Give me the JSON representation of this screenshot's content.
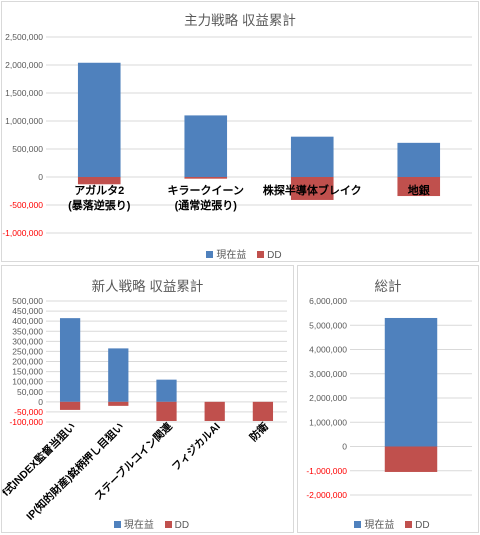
{
  "colors": {
    "profit": "#4f81bd",
    "dd": "#c0504d",
    "grid": "#d9d9d9",
    "axis_text": "#595959",
    "negative_tick": "#ff0000"
  },
  "legend": {
    "profit": "現在益",
    "dd": "DD"
  },
  "chart_data": [
    {
      "type": "bar",
      "stacked": true,
      "title": "主力戦略 収益累計",
      "categories": [
        "アガルタ2\n(暴落逆張り)",
        "キラークイーン\n(通常逆張り)",
        "株探半導体ブレイク",
        "地銀"
      ],
      "series": [
        {
          "name": "現在益",
          "values": [
            2040000,
            1100000,
            720000,
            610000
          ]
        },
        {
          "name": "DD",
          "values": [
            -130000,
            -30000,
            -410000,
            -340000
          ]
        }
      ],
      "ylim": [
        -1000000,
        2500000
      ],
      "yticks": [
        2500000,
        2000000,
        1500000,
        1000000,
        500000,
        0,
        -500000,
        -1000000
      ],
      "ytick_labels": [
        "2,500,000",
        "2,000,000",
        "1,500,000",
        "1,000,000",
        "500,000",
        "0",
        "-500,000",
        "-1,000,000"
      ],
      "grid": true,
      "legend_position": "bottom"
    },
    {
      "type": "bar",
      "stacked": true,
      "title": "新人戦略 収益累計",
      "categories": [
        "f式INDEX監督当狙い",
        "IP(知的財産)銘柄押し目狙い",
        "ステーブルコイン関連",
        "フィジカルAI",
        "防衛"
      ],
      "series": [
        {
          "name": "現在益",
          "values": [
            415000,
            265000,
            110000,
            0,
            0
          ]
        },
        {
          "name": "DD",
          "values": [
            -40000,
            -20000,
            -95000,
            -95000,
            -95000
          ]
        }
      ],
      "ylim": [
        -100000,
        500000
      ],
      "yticks": [
        500000,
        450000,
        400000,
        350000,
        300000,
        250000,
        200000,
        150000,
        100000,
        50000,
        0,
        -50000,
        -100000
      ],
      "ytick_labels": [
        "500,000",
        "450,000",
        "400,000",
        "350,000",
        "300,000",
        "250,000",
        "200,000",
        "150,000",
        "100,000",
        "50,000",
        "0",
        "-50,000",
        "-100,000"
      ],
      "grid": true,
      "legend_position": "bottom"
    },
    {
      "type": "bar",
      "stacked": true,
      "title": "総計",
      "categories": [
        ""
      ],
      "series": [
        {
          "name": "現在益",
          "values": [
            5300000
          ]
        },
        {
          "name": "DD",
          "values": [
            -1050000
          ]
        }
      ],
      "ylim": [
        -2000000,
        6000000
      ],
      "yticks": [
        6000000,
        5000000,
        4000000,
        3000000,
        2000000,
        1000000,
        0,
        -1000000,
        -2000000
      ],
      "ytick_labels": [
        "6,000,000",
        "5,000,000",
        "4,000,000",
        "3,000,000",
        "2,000,000",
        "1,000,000",
        "0",
        "-1,000,000",
        "-2,000,000"
      ],
      "grid": true,
      "legend_position": "bottom"
    }
  ]
}
